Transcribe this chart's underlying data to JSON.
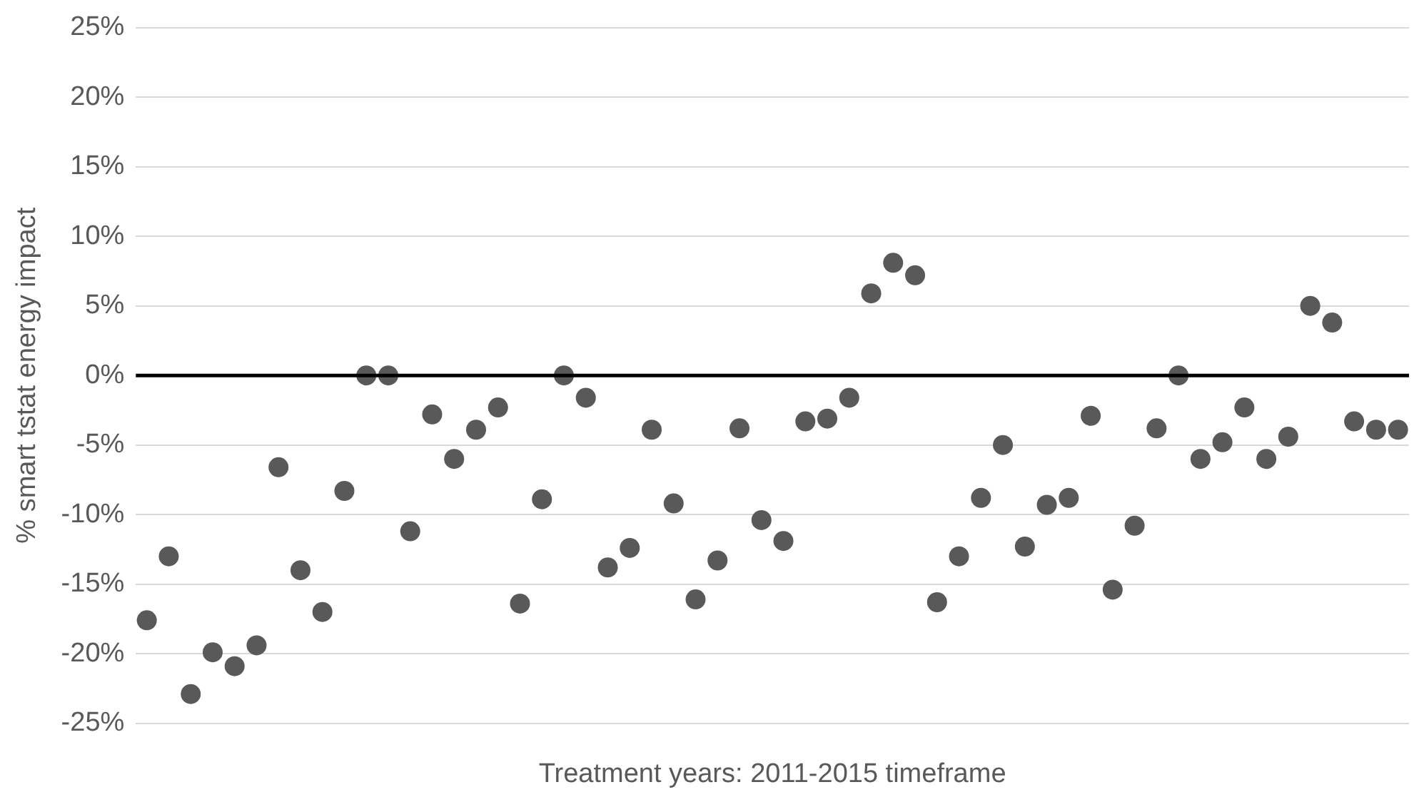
{
  "chart_data": {
    "type": "scatter",
    "xlabel": "Treatment years: 2011-2015 timeframe",
    "ylabel": "% smart tstat energy impact",
    "categories": [
      null,
      null,
      null,
      null,
      null,
      null,
      null,
      null,
      null,
      null,
      null,
      null,
      null,
      null,
      null,
      null,
      null,
      null,
      null,
      null,
      null,
      null,
      null,
      null,
      null,
      null,
      null,
      null,
      null,
      null,
      null,
      null,
      null,
      null,
      null,
      null,
      null,
      null,
      null,
      null,
      null,
      null,
      null,
      null,
      null,
      null,
      null,
      null,
      null,
      null,
      null,
      null,
      null,
      null,
      null,
      null,
      null,
      null
    ],
    "series": [
      {
        "color": "#595959",
        "values": [
          -17.6,
          -13.0,
          -22.9,
          -19.9,
          -20.9,
          -19.4,
          -6.6,
          -14.0,
          -17.0,
          -8.3,
          0,
          0,
          -11.2,
          -2.8,
          -6.0,
          -3.9,
          -2.3,
          -16.4,
          -8.9,
          0,
          -1.6,
          -13.8,
          -12.4,
          -3.9,
          -9.2,
          -16.1,
          -13.3,
          -3.8,
          -10.4,
          -11.9,
          -3.3,
          -3.1,
          -1.6,
          5.9,
          8.1,
          7.2,
          -16.3,
          -13.0,
          -8.8,
          -5.0,
          -12.3,
          -9.3,
          -8.8,
          -2.9,
          -15.4,
          -10.8,
          -3.8,
          0,
          -6.0,
          -4.8,
          -2.3,
          -6.0,
          -4.4,
          5.0,
          3.8,
          -3.3,
          -3.9,
          -3.9
        ]
      }
    ],
    "ylim": [
      -25,
      25
    ],
    "yticks": [
      {
        "value": -25,
        "label": "-25%"
      },
      {
        "value": -20,
        "label": "-20%"
      },
      {
        "value": -15,
        "label": "-15%"
      },
      {
        "value": -10,
        "label": "-10%"
      },
      {
        "value": -5,
        "label": "-5%"
      },
      {
        "value": 0,
        "label": "0%"
      },
      {
        "value": 5,
        "label": "5%"
      },
      {
        "value": 10,
        "label": "10%"
      },
      {
        "value": 15,
        "label": "15%"
      },
      {
        "value": 20,
        "label": "20%"
      },
      {
        "value": 25,
        "label": "25%"
      }
    ],
    "ref_lines": [
      {
        "axis": "y",
        "value": 0,
        "color": "#000000"
      }
    ],
    "grid": "y",
    "marker": "circle",
    "legend": false
  }
}
